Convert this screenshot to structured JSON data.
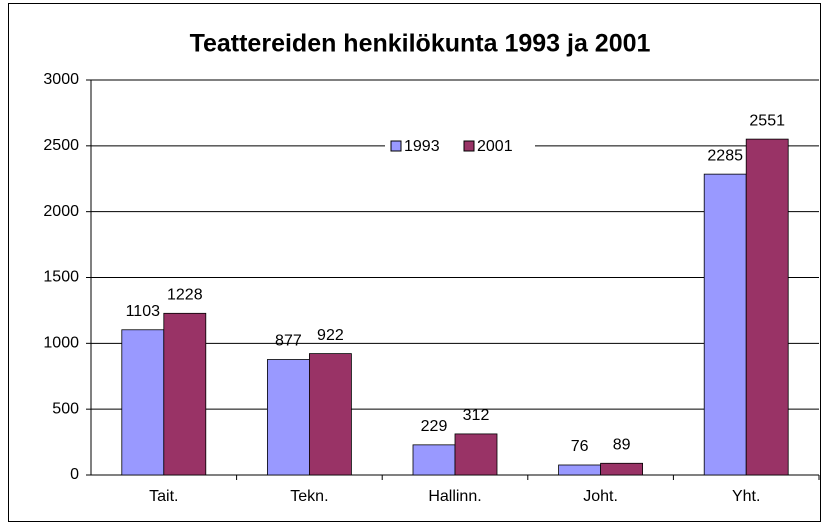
{
  "chart_data": {
    "type": "bar",
    "title": "Teattereiden henkilökunta 1993 ja 2001",
    "categories": [
      "Tait.",
      "Tekn.",
      "Hallinn.",
      "Joht.",
      "Yht."
    ],
    "series": [
      {
        "name": "1993",
        "color": "#9999ff",
        "values": [
          1103,
          877,
          229,
          76,
          2285
        ]
      },
      {
        "name": "2001",
        "color": "#993366",
        "values": [
          1228,
          922,
          312,
          89,
          2551
        ]
      }
    ],
    "ylim": [
      0,
      3000
    ],
    "yticks": [
      0,
      500,
      1000,
      1500,
      2000,
      2500,
      3000
    ],
    "grid": true,
    "legend": "top"
  }
}
